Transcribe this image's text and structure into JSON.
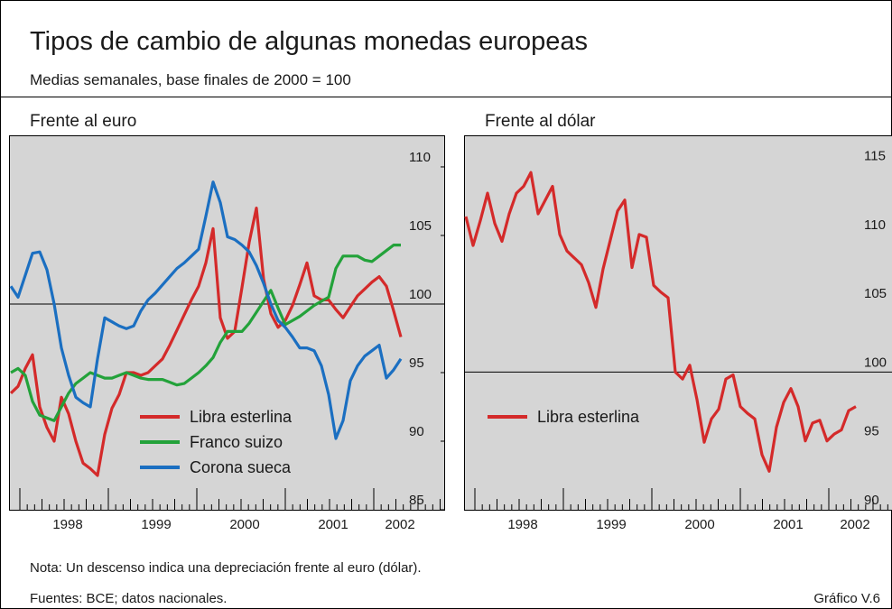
{
  "title": "Tipos de cambio de algunas monedas europeas",
  "subtitle": "Medias semanales, base finales de 2000 = 100",
  "note": "Nota: Un descenso indica una depreciación frente al euro (dólar).",
  "source": "Fuentes: BCE; datos nacionales.",
  "figure_label": "Gráfico V.6",
  "chart_data": [
    {
      "type": "line",
      "title": "Frente al euro",
      "year_labels": [
        "1998",
        "1999",
        "2000",
        "2001",
        "2002"
      ],
      "ylim": [
        85,
        112.3
      ],
      "yticks": [
        85,
        90,
        95,
        100,
        105,
        110
      ],
      "reference_line": 100,
      "series": [
        {
          "name": "Libra esterlina",
          "color": "#d42a2a",
          "values": [
            93.5,
            94,
            95.3,
            96.3,
            92.5,
            91,
            90,
            93.2,
            92,
            90,
            88.4,
            88,
            87.5,
            90.5,
            92.4,
            93.4,
            95,
            95,
            94.8,
            95,
            95.5,
            96,
            97,
            98.1,
            99.2,
            100.3,
            101.3,
            103,
            105.5,
            99,
            97.5,
            98,
            101.2,
            104.5,
            107,
            101.8,
            99.3,
            98.3,
            98.8,
            99.9,
            101.4,
            103,
            100.6,
            100.3,
            100.3,
            99.6,
            99,
            99.8,
            100.6,
            101.1,
            101.6,
            102,
            101.3,
            99.5,
            97.6
          ]
        },
        {
          "name": "Franco suizo",
          "color": "#23a23a",
          "values": [
            95,
            95.3,
            94.8,
            92.9,
            91.9,
            91.7,
            91.5,
            92.5,
            93.5,
            94.2,
            94.6,
            95,
            94.8,
            94.6,
            94.6,
            94.8,
            95,
            94.8,
            94.6,
            94.5,
            94.5,
            94.5,
            94.3,
            94.1,
            94.2,
            94.6,
            95,
            95.5,
            96.1,
            97.2,
            98,
            98,
            98,
            98.6,
            99.4,
            100.2,
            101,
            99.7,
            98.5,
            98.8,
            99.1,
            99.5,
            99.9,
            100.2,
            100.5,
            102.6,
            103.5,
            103.5,
            103.5,
            103.2,
            103.1,
            103.5,
            103.9,
            104.3,
            104.3
          ]
        },
        {
          "name": "Corona sueca",
          "color": "#1b6fc1",
          "values": [
            101.3,
            100.5,
            102.1,
            103.7,
            103.8,
            102.5,
            100,
            96.8,
            94.8,
            93.2,
            92.8,
            92.5,
            96,
            99,
            98.7,
            98.4,
            98.2,
            98.4,
            99.5,
            100.3,
            100.8,
            101.4,
            102,
            102.6,
            103,
            103.5,
            104,
            106.4,
            108.9,
            107.4,
            104.9,
            104.7,
            104.3,
            103.8,
            102.8,
            101.5,
            100,
            98.8,
            98.3,
            97.6,
            96.8,
            96.8,
            96.6,
            95.5,
            93.4,
            90.2,
            91.5,
            94.4,
            95.5,
            96.2,
            96.6,
            97,
            94.6,
            95.2,
            96
          ]
        }
      ]
    },
    {
      "type": "line",
      "title": "Frente al dólar",
      "year_labels": [
        "1998",
        "1999",
        "2000",
        "2001",
        "2002"
      ],
      "ylim": [
        90,
        117.2
      ],
      "yticks": [
        90,
        95,
        100,
        105,
        110,
        115
      ],
      "reference_line": 100,
      "series": [
        {
          "name": "Libra esterlina",
          "color": "#d42a2a",
          "values": [
            111.3,
            109.2,
            111,
            113,
            110.8,
            109.5,
            111.5,
            113,
            113.5,
            114.5,
            111.5,
            112.5,
            113.5,
            110,
            108.8,
            108.3,
            107.8,
            106.5,
            104.7,
            107.5,
            109.6,
            111.7,
            112.5,
            107.6,
            110,
            109.8,
            106.3,
            105.8,
            105.4,
            100,
            99.5,
            100.5,
            98,
            94.9,
            96.6,
            97.3,
            99.5,
            99.8,
            97.5,
            97,
            96.6,
            94,
            92.8,
            96,
            97.8,
            98.8,
            97.5,
            95,
            96.3,
            96.5,
            95,
            95.5,
            95.8,
            97.2,
            97.5
          ]
        }
      ]
    }
  ]
}
